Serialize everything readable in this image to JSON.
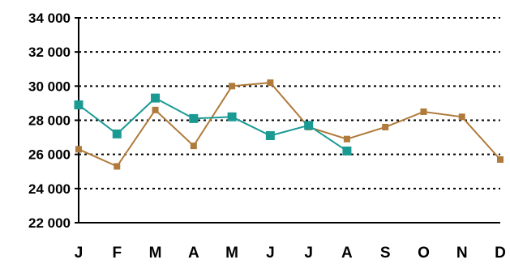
{
  "chart_data": {
    "type": "line",
    "categories": [
      "J",
      "F",
      "M",
      "A",
      "M",
      "J",
      "J",
      "A",
      "S",
      "O",
      "N",
      "D"
    ],
    "y_ticks": [
      "22 000",
      "24 000",
      "26 000",
      "28 000",
      "30 000",
      "32 000",
      "34 000"
    ],
    "ylim": [
      22000,
      34000
    ],
    "grid": true,
    "series": [
      {
        "color": "#1b9a94",
        "marker": "square",
        "values": [
          28900,
          27200,
          29300,
          28100,
          28200,
          27100,
          27700,
          26200,
          null,
          null,
          null,
          null
        ]
      },
      {
        "color": "#b07a3a",
        "marker": "square",
        "values": [
          26300,
          25300,
          28600,
          26500,
          30000,
          30200,
          27600,
          26900,
          27600,
          28500,
          28200,
          25700
        ]
      }
    ]
  }
}
